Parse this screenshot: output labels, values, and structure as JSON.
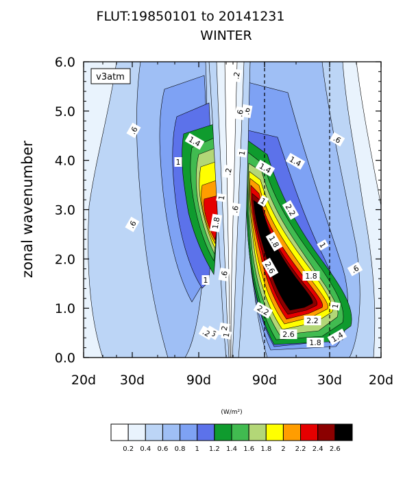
{
  "title_line1": "FLUT:19850101 to 20141231",
  "title_line2": "WINTER",
  "chart_data": {
    "type": "contour",
    "field": "FLUT",
    "period": "19850101 to 20141231",
    "season": "WINTER",
    "case_label": "v3atm",
    "ylabel": "zonal wavenumber",
    "xlabel": "",
    "y_ticks": [
      "0.0",
      "1.0",
      "2.0",
      "3.0",
      "4.0",
      "5.0",
      "6.0"
    ],
    "ylim": [
      0,
      6
    ],
    "x_tick_labels": [
      "20d",
      "30d",
      "90d",
      "90d",
      "30d",
      "20d"
    ],
    "x_axis_note": "westward (left) and eastward (right) periods; dashed lines mark 90d and 30d eastward",
    "colorbar_title": "(W/m²)",
    "contour_levels": [
      0.2,
      0.4,
      0.6,
      0.8,
      1,
      1.2,
      1.4,
      1.6,
      1.8,
      2,
      2.2,
      2.4,
      2.6
    ],
    "level_labels": [
      "0.2",
      "0.4",
      "0.6",
      "0.8",
      "1",
      "1.2",
      "1.4",
      "1.6",
      "1.8",
      "2",
      "2.2",
      "2.4",
      "2.6"
    ],
    "palette": [
      "#ffffff",
      "#e9f3fd",
      "#bcd5f6",
      "#9fbff5",
      "#7ea2f4",
      "#5c72ea",
      "#0f9b2e",
      "#41bb50",
      "#b3d777",
      "#ffff00",
      "#ff9d00",
      "#e60000",
      "#8b0000",
      "#000000"
    ],
    "contour_labels": [
      ".2",
      ".6",
      "1",
      ".2",
      "1",
      ".6",
      "1.4",
      "1",
      "1.8",
      "1",
      ".2",
      ".6",
      ".6",
      ".6",
      ".6",
      "1.4",
      "1",
      "2.2",
      "1.4",
      "1.8",
      "1",
      "2.6",
      "1.8",
      ".6",
      "1",
      "2.2",
      "2.2",
      "2.6",
      "1.8",
      "1.4",
      "1",
      ".2",
      ".6",
      ".6"
    ],
    "annotations": [
      {
        "text": ".2",
        "x_period": "east",
        "y": 5.8
      },
      {
        "text": ".6",
        "x_period": "east",
        "y": 5.0
      },
      {
        "text": "1.4",
        "x_period": "west",
        "y": 4.4
      },
      {
        "text": "1",
        "x_period": "west",
        "y": 4.0
      },
      {
        "text": "1.8",
        "x_period": "west",
        "y": 2.7
      },
      {
        "text": "1",
        "x_period": "west",
        "y": 1.6
      },
      {
        "text": "1.4",
        "x_period": "east",
        "y": 3.7
      },
      {
        "text": "2.2",
        "x_period": "east",
        "y": 3.1
      },
      {
        "text": "1.4",
        "x_period": "east",
        "y": 2.9
      },
      {
        "text": "1.8",
        "x_period": "east",
        "y": 2.3
      },
      {
        "text": "2.6",
        "x_period": "east",
        "y": 1.8
      },
      {
        "text": "1.8",
        "x_period": "east",
        "y": 1.6
      },
      {
        "text": "2.2",
        "x_period": "east",
        "y": 0.9
      },
      {
        "text": "2.6",
        "x_period": "east",
        "y": 0.7
      },
      {
        "text": "1.8",
        "x_period": "east",
        "y": 0.45
      },
      {
        "text": "1.4",
        "x_period": "east",
        "y": 0.3
      },
      {
        "text": "1",
        "x_period": "east",
        "y": 0.35
      },
      {
        "text": "2.2",
        "x_period": "east",
        "y": 1.0
      },
      {
        "text": "1",
        "x_period": "east",
        "y": 2.3
      },
      {
        "text": "1",
        "x_period": "east",
        "y": 4.0
      },
      {
        "text": ".6",
        "x_period": "east",
        "y": 4.4
      },
      {
        "text": ".6",
        "x_period": "east",
        "y": 1.8
      },
      {
        "text": ".6",
        "x_period": "west",
        "y": 4.6
      },
      {
        "text": ".6",
        "x_period": "west",
        "y": 2.7
      },
      {
        "text": ".6",
        "x_period": "west",
        "y": 0.5
      },
      {
        "text": ".2",
        "x_period": "west",
        "y": 0.6
      }
    ]
  }
}
